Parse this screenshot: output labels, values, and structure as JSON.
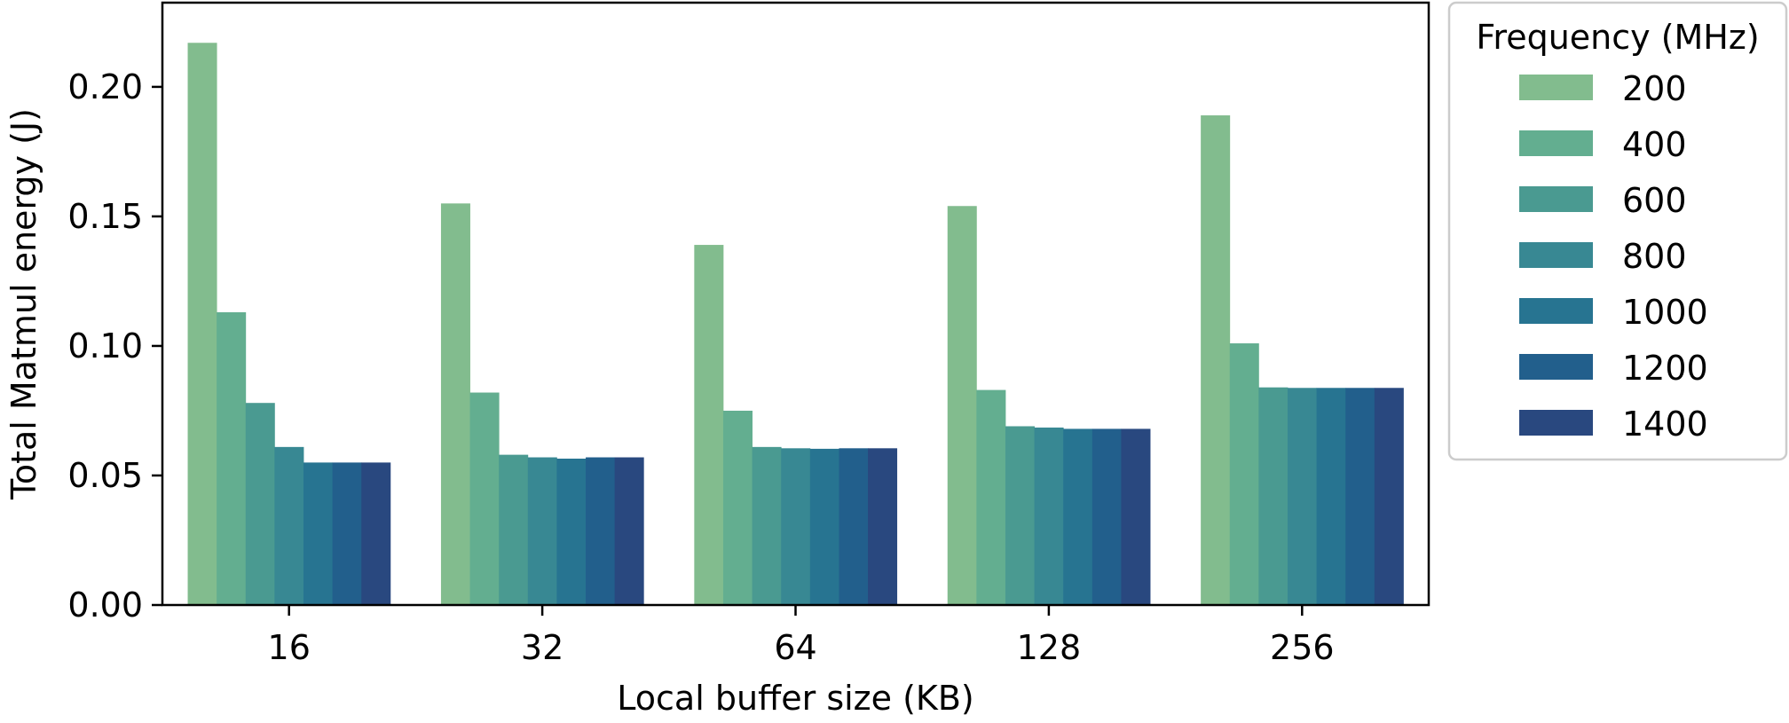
{
  "chart_data": {
    "type": "bar",
    "title": "",
    "xlabel": "Local buffer size (KB)",
    "ylabel": "Total Matmul energy (J)",
    "ylim": [
      0,
      0.2325
    ],
    "yticks": [
      "0.00",
      "0.05",
      "0.10",
      "0.15",
      "0.20"
    ],
    "ytick_values": [
      0,
      0.05,
      0.1,
      0.15,
      0.2
    ],
    "categories": [
      "16",
      "32",
      "64",
      "128",
      "256"
    ],
    "legend": {
      "title": "Frequency (MHz)",
      "placement": "outside-right"
    },
    "series": [
      {
        "name": "200",
        "color": "#82bc8e",
        "values": [
          0.217,
          0.155,
          0.139,
          0.154,
          0.189
        ]
      },
      {
        "name": "400",
        "color": "#63ae90",
        "values": [
          0.113,
          0.082,
          0.075,
          0.083,
          0.101
        ]
      },
      {
        "name": "600",
        "color": "#4a9a91",
        "values": [
          0.078,
          0.058,
          0.061,
          0.069,
          0.084
        ]
      },
      {
        "name": "800",
        "color": "#388893",
        "values": [
          0.061,
          0.057,
          0.0605,
          0.0685,
          0.0838
        ]
      },
      {
        "name": "1000",
        "color": "#277491",
        "values": [
          0.055,
          0.0565,
          0.0603,
          0.068,
          0.0838
        ]
      },
      {
        "name": "1200",
        "color": "#225f8c",
        "values": [
          0.055,
          0.057,
          0.0605,
          0.068,
          0.0838
        ]
      },
      {
        "name": "1400",
        "color": "#29487f",
        "values": [
          0.055,
          0.057,
          0.0605,
          0.068,
          0.0838
        ]
      }
    ]
  }
}
